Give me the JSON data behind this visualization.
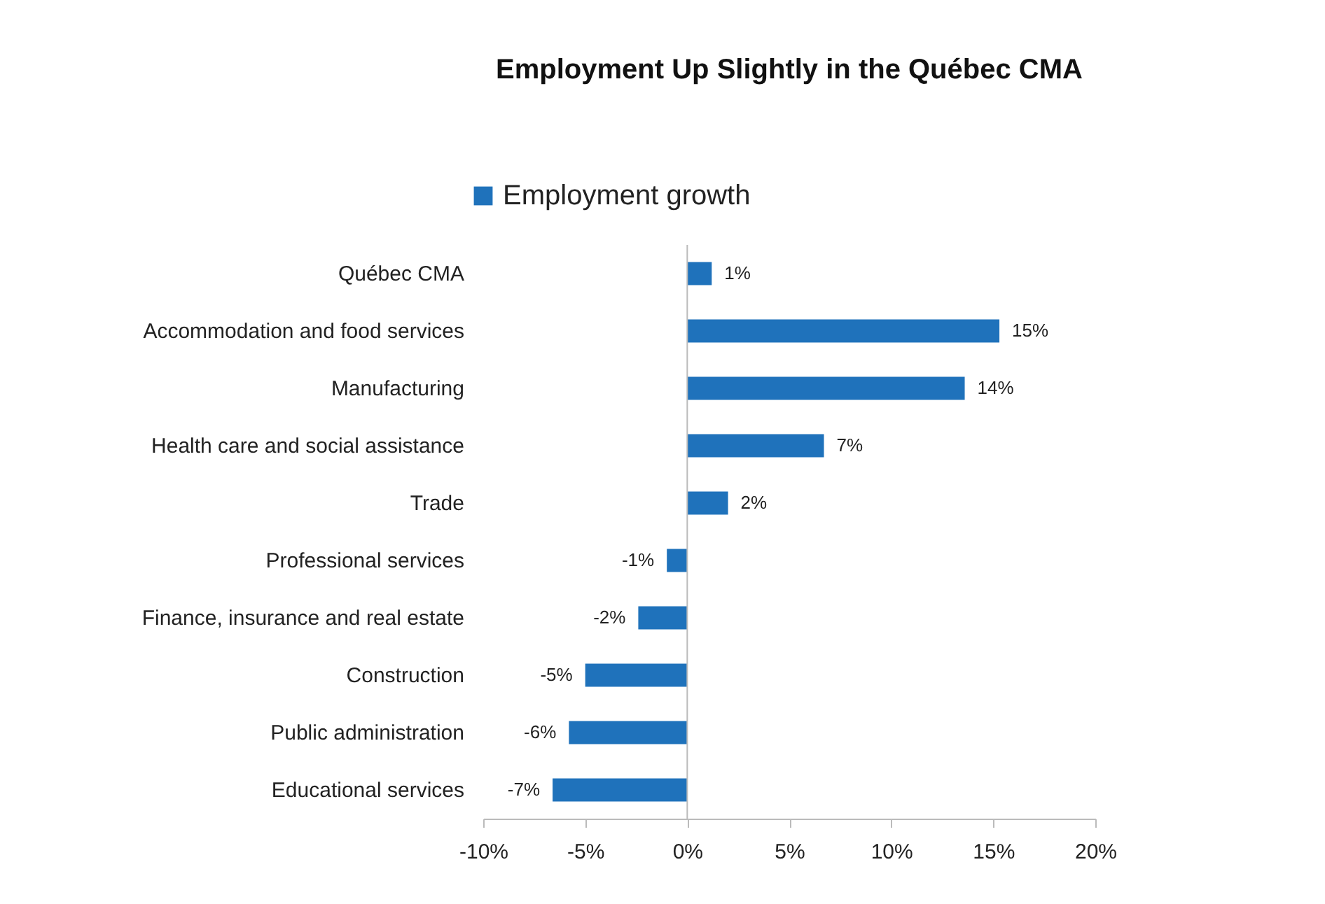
{
  "chart_data": {
    "type": "bar",
    "orientation": "horizontal",
    "title": "Employment Up Slightly in the Québec CMA",
    "categories": [
      "Québec CMA",
      "Accommodation and food services",
      "Manufacturing",
      "Health care and social assistance",
      "Trade",
      "Professional services",
      "Finance, insurance and real estate",
      "Construction",
      "Public administration",
      "Educational services"
    ],
    "series": [
      {
        "name": "Employment growth",
        "color": "#1f72bb",
        "values": [
          1.2,
          15.3,
          13.6,
          6.7,
          2.0,
          -1.0,
          -2.4,
          -5.0,
          -5.8,
          -6.6
        ],
        "value_labels": [
          "1%",
          "15%",
          "14%",
          "7%",
          "2%",
          "-1%",
          "-2%",
          "-5%",
          "-6%",
          "-7%"
        ]
      }
    ],
    "xlim": [
      -10,
      20
    ],
    "xticks": [
      {
        "value": -10,
        "label": "-10%"
      },
      {
        "value": -5,
        "label": "-5%"
      },
      {
        "value": 0,
        "label": "0%"
      },
      {
        "value": 5,
        "label": "5%"
      },
      {
        "value": 10,
        "label": "10%"
      },
      {
        "value": 15,
        "label": "15%"
      },
      {
        "value": 20,
        "label": "20%"
      }
    ],
    "ref_lines": [
      {
        "axis": "x",
        "value": 0,
        "color": "#bbbbbb"
      }
    ],
    "grid": false,
    "legend": "top"
  }
}
